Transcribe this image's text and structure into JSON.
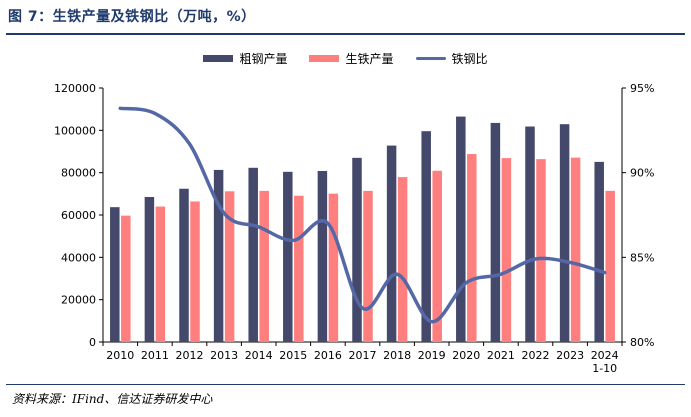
{
  "title": "图 7：生铁产量及铁钢比（万吨，%）",
  "source": "资料来源：IFind、信达证券研发中心",
  "colors": {
    "crude_steel": "#44496b",
    "pig_iron": "#ff7f7f",
    "ratio": "#5468a6",
    "title": "#1f3a6b"
  },
  "chart_data": {
    "type": "bar+line",
    "categories": [
      "2010",
      "2011",
      "2012",
      "2013",
      "2014",
      "2015",
      "2016",
      "2017",
      "2018",
      "2019",
      "2020",
      "2021",
      "2022",
      "2023",
      "2024\n1-10"
    ],
    "series": [
      {
        "name": "粗钢产量",
        "type": "bar",
        "axis": "left",
        "values": [
          63700,
          68500,
          72400,
          81300,
          82300,
          80400,
          80800,
          87000,
          92800,
          99600,
          106500,
          103500,
          101800,
          102900,
          85100
        ]
      },
      {
        "name": "生铁产量",
        "type": "bar",
        "axis": "left",
        "values": [
          59700,
          64000,
          66400,
          71200,
          71400,
          69100,
          70100,
          71400,
          77900,
          80900,
          88800,
          86900,
          86400,
          87100,
          71400
        ]
      },
      {
        "name": "铁钢比",
        "type": "line",
        "axis": "right",
        "values": [
          93.8,
          93.5,
          91.7,
          87.6,
          86.8,
          86.0,
          87.0,
          82.0,
          84.0,
          81.2,
          83.5,
          84.0,
          84.9,
          84.7,
          84.1
        ]
      }
    ],
    "y_left": {
      "min": 0,
      "max": 120000,
      "ticks": [
        0,
        20000,
        40000,
        60000,
        80000,
        100000,
        120000
      ]
    },
    "y_right": {
      "min": 80,
      "max": 95,
      "ticks": [
        "80%",
        "85%",
        "90%",
        "95%"
      ]
    },
    "legend_position": "top-center",
    "grid": false
  }
}
